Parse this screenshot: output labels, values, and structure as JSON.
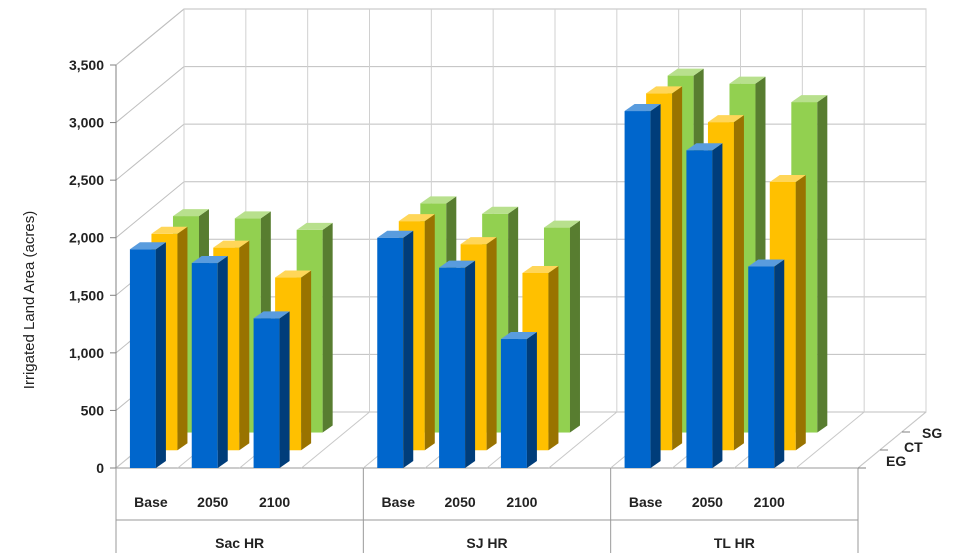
{
  "chart_data": {
    "type": "bar",
    "ylabel": "Irrigated Land Area (acres)",
    "yticks": [
      "0",
      "500",
      "1,000",
      "1,500",
      "2,000",
      "2,500",
      "3,000",
      "3,500"
    ],
    "ylim": [
      0,
      3500
    ],
    "groups": [
      "Sac HR",
      "SJ HR",
      "TL HR"
    ],
    "subcategories": [
      "Base",
      "2050",
      "2100"
    ],
    "series": [
      {
        "name": "EG",
        "color": "#0066CC",
        "values": [
          1900,
          1780,
          1300,
          2000,
          1740,
          1120,
          3100,
          2760,
          1750
        ]
      },
      {
        "name": "CT",
        "color": "#FFC000",
        "values": [
          1880,
          1760,
          1500,
          1990,
          1790,
          1540,
          3100,
          2850,
          2330
        ]
      },
      {
        "name": "SG",
        "color": "#92D050",
        "values": [
          1880,
          1860,
          1760,
          1990,
          1900,
          1780,
          3100,
          3030,
          2870
        ]
      }
    ],
    "depth_labels": [
      "EG",
      "CT",
      "SG"
    ],
    "grid": true
  }
}
